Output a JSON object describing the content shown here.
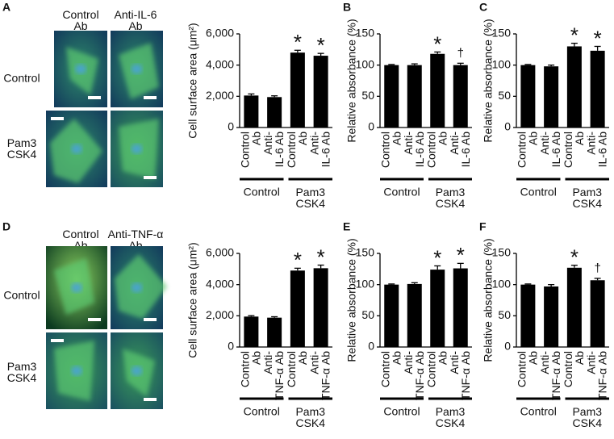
{
  "image_panels": [
    {
      "panel_label": "A",
      "columns": [
        "Control\nAb",
        "Anti-IL-6\nAb"
      ],
      "rows": [
        "Control",
        "Pam3\nCSK4"
      ]
    },
    {
      "panel_label": "D",
      "columns": [
        "Control\nAb",
        "Anti-TNF-α\nAb"
      ],
      "rows": [
        "Control",
        "Pam3\nCSK4"
      ]
    }
  ],
  "chart_data": [
    {
      "type": "bar",
      "ylabel": "Cell surface area (μm²)",
      "categories": [
        "Control\nAb",
        "Anti-\nIL-6 Ab",
        "Control\nAb",
        "Anti-\nIL-6 Ab"
      ],
      "groups": [
        "Control",
        "Pam3\nCSK4"
      ],
      "values": [
        2050,
        1950,
        4800,
        4600
      ],
      "errors": [
        100,
        80,
        150,
        150
      ],
      "annotations": [
        null,
        null,
        "*",
        "*"
      ],
      "color": "#000000",
      "ylim": [
        0,
        6000
      ],
      "yticks": [
        0,
        {
          "value": 2000,
          "label": "2,000"
        },
        {
          "value": 4000,
          "label": "4,000"
        },
        {
          "value": 6000,
          "label": "6,000"
        }
      ]
    },
    {
      "type": "bar",
      "panel_label": "B",
      "ylabel": "Relative absorbance (%)",
      "categories": [
        "Control\nAb",
        "Anti-\nIL-6 Ab",
        "Control\nAb",
        "Anti-\nIL-6 Ab"
      ],
      "groups": [
        "Control",
        "Pam3\nCSK4"
      ],
      "values": [
        100,
        100,
        118,
        100
      ],
      "errors": [
        1,
        2,
        3,
        3
      ],
      "annotations": [
        null,
        null,
        "*",
        "†"
      ],
      "color": "#000000",
      "ylim": [
        0,
        150
      ],
      "yticks": [
        0,
        50,
        100,
        150
      ]
    },
    {
      "type": "bar",
      "panel_label": "C",
      "ylabel": "Relative absorbance (%)",
      "categories": [
        "Control\nAb",
        "Anti-\nIL-6 Ab",
        "Control\nAb",
        "Anti-\nIL-6 Ab"
      ],
      "groups": [
        "Control",
        "Pam3\nCSK4"
      ],
      "values": [
        100,
        98,
        130,
        123
      ],
      "errors": [
        1,
        2,
        5,
        7
      ],
      "annotations": [
        null,
        null,
        "*",
        "*"
      ],
      "color": "#000000",
      "ylim": [
        0,
        150
      ],
      "yticks": [
        0,
        50,
        100,
        150
      ]
    },
    {
      "type": "bar",
      "ylabel": "Cell surface area (μm²)",
      "categories": [
        "Control\nAb",
        "Anti-\nTNF-α Ab",
        "Control\nAb",
        "Anti-\nTNF-α Ab"
      ],
      "groups": [
        "Control",
        "Pam3\nCSK4"
      ],
      "values": [
        1950,
        1880,
        4900,
        5050
      ],
      "errors": [
        60,
        60,
        150,
        200
      ],
      "annotations": [
        null,
        null,
        "*",
        "*"
      ],
      "color": "#000000",
      "ylim": [
        0,
        6000
      ],
      "yticks": [
        0,
        {
          "value": 2000,
          "label": "2,000"
        },
        {
          "value": 4000,
          "label": "4,000"
        },
        {
          "value": 6000,
          "label": "6,000"
        }
      ]
    },
    {
      "type": "bar",
      "panel_label": "E",
      "ylabel": "Relative absorbance (%)",
      "categories": [
        "Control\nAb",
        "Anti-\nTNF-α Ab",
        "Control\nAb",
        "Anti-\nTNF-α Ab"
      ],
      "groups": [
        "Control",
        "Pam3\nCSK4"
      ],
      "values": [
        100,
        101,
        124,
        126
      ],
      "errors": [
        1,
        2,
        6,
        8
      ],
      "annotations": [
        null,
        null,
        "*",
        "*"
      ],
      "color": "#000000",
      "ylim": [
        0,
        150
      ],
      "yticks": [
        0,
        50,
        100,
        150
      ]
    },
    {
      "type": "bar",
      "panel_label": "F",
      "ylabel": "Relative absorbance (%)",
      "categories": [
        "Control\nAb",
        "Anti-\nTNF-α Ab",
        "Control\nAb",
        "Anti-\nTNF-α Ab"
      ],
      "groups": [
        "Control",
        "Pam3\nCSK4"
      ],
      "values": [
        100,
        97,
        127,
        107
      ],
      "errors": [
        1,
        3,
        4,
        3
      ],
      "annotations": [
        null,
        null,
        "*",
        "†"
      ],
      "color": "#000000",
      "ylim": [
        0,
        150
      ],
      "yticks": [
        0,
        50,
        100,
        150
      ]
    }
  ]
}
